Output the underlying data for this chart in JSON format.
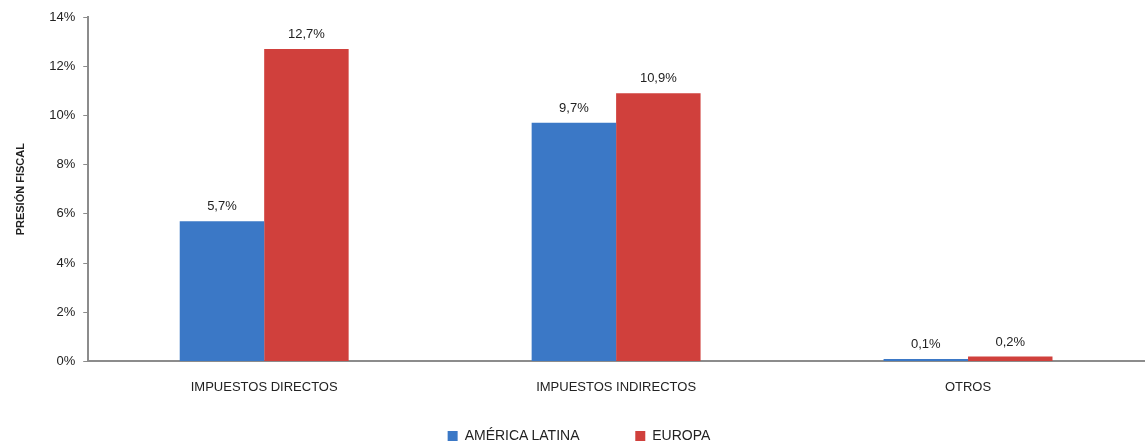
{
  "chart_data": {
    "type": "bar",
    "categories": [
      "IMPUESTOS DIRECTOS",
      "IMPUESTOS INDIRECTOS",
      "OTROS"
    ],
    "series": [
      {
        "name": "AMÉRICA LATINA",
        "color": "#3b78c6",
        "values": [
          5.7,
          9.7,
          0.1
        ],
        "value_labels": [
          "5,7%",
          "9,7%",
          "0,1%"
        ]
      },
      {
        "name": "EUROPA",
        "color": "#d0403c",
        "values": [
          12.7,
          10.9,
          0.2
        ],
        "value_labels": [
          "12,7%",
          "10,9%",
          "0,2%"
        ]
      }
    ],
    "ylabel": "PRESIÓN FISCAL",
    "ylim": [
      0,
      14
    ],
    "yticks": [
      {
        "value": 0,
        "label": "0%"
      },
      {
        "value": 2,
        "label": "2%"
      },
      {
        "value": 4,
        "label": "4%"
      },
      {
        "value": 6,
        "label": "6%"
      },
      {
        "value": 8,
        "label": "8%"
      },
      {
        "value": 10,
        "label": "10%"
      },
      {
        "value": 12,
        "label": "12%"
      },
      {
        "value": 14,
        "label": "14%"
      }
    ],
    "legend": "bottom",
    "grid": false
  }
}
